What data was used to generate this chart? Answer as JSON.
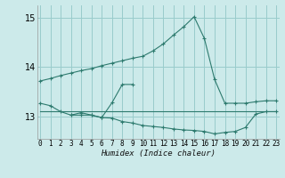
{
  "xlabel": "Humidex (Indice chaleur)",
  "bg_color": "#cceaea",
  "grid_color": "#99cccc",
  "line_color": "#2d7a6e",
  "x_ticks": [
    0,
    1,
    2,
    3,
    4,
    5,
    6,
    7,
    8,
    9,
    10,
    11,
    12,
    13,
    14,
    15,
    16,
    17,
    18,
    19,
    20,
    21,
    22,
    23
  ],
  "ylim": [
    12.55,
    15.25
  ],
  "yticks": [
    13,
    14,
    15
  ],
  "xlim": [
    -0.3,
    23.3
  ],
  "series1_x": [
    0,
    1,
    2,
    3,
    4,
    5,
    6,
    7,
    8,
    9,
    10,
    11,
    12,
    13,
    14,
    15,
    16,
    17,
    18,
    19,
    20,
    21,
    22,
    23
  ],
  "series1_y": [
    13.72,
    13.77,
    13.83,
    13.88,
    13.93,
    13.97,
    14.03,
    14.08,
    14.13,
    14.18,
    14.22,
    14.33,
    14.47,
    14.65,
    14.82,
    15.02,
    14.58,
    13.75,
    13.27,
    13.27,
    13.27,
    13.3,
    13.32,
    13.32
  ],
  "series2_x": [
    3,
    4,
    5,
    6,
    7,
    8,
    9
  ],
  "series2_y": [
    13.03,
    13.08,
    13.03,
    12.98,
    13.28,
    13.65,
    13.65
  ],
  "series3_x": [
    0,
    1,
    2,
    3,
    4,
    5,
    6,
    7,
    8,
    9,
    10,
    11,
    12,
    13,
    14,
    15,
    16,
    17,
    18,
    19,
    20,
    21,
    22,
    23
  ],
  "series3_y": [
    13.27,
    13.22,
    13.1,
    13.03,
    13.03,
    13.03,
    12.98,
    12.97,
    12.9,
    12.87,
    12.82,
    12.8,
    12.78,
    12.75,
    12.73,
    12.72,
    12.7,
    12.65,
    12.68,
    12.7,
    12.78,
    13.05,
    13.1,
    13.1
  ],
  "series4_x": [
    0,
    23
  ],
  "series4_y": [
    13.1,
    13.1
  ],
  "tick_fontsize": 5.5,
  "xlabel_fontsize": 6.5
}
